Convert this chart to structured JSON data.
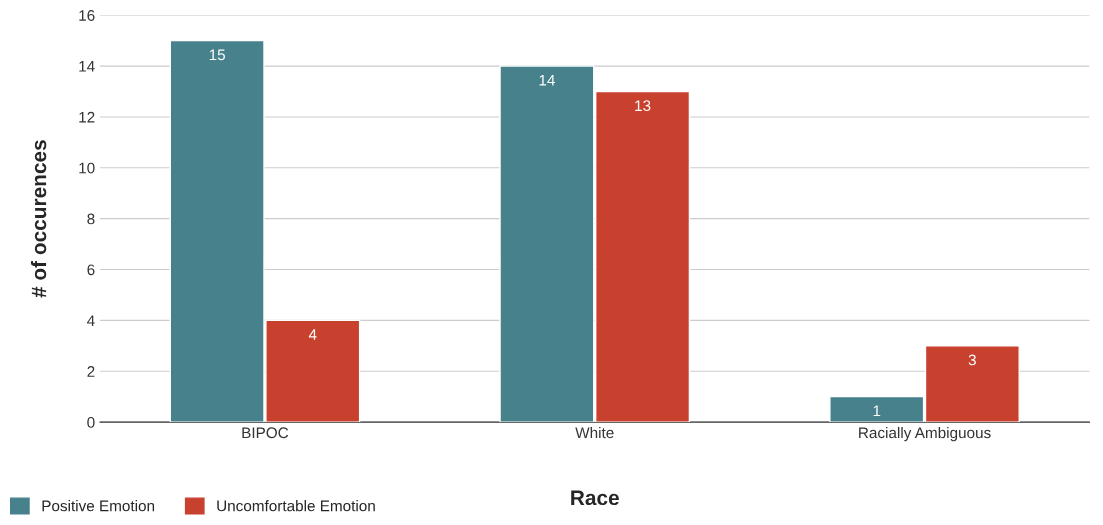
{
  "chart_data": {
    "type": "bar",
    "xlabel": "Race",
    "ylabel": "# of occurences",
    "categories": [
      "BIPOC",
      "White",
      "Racially Ambiguous"
    ],
    "series": [
      {
        "name": "Positive Emotion",
        "color": "#46818c",
        "values": [
          15,
          14,
          1
        ]
      },
      {
        "name": "Uncomfortable Emotion",
        "color": "#c8412f",
        "values": [
          4,
          13,
          3
        ]
      }
    ],
    "ylim": [
      0,
      16
    ],
    "yticks": [
      0,
      2,
      4,
      6,
      8,
      10,
      12,
      14,
      16
    ],
    "grid": "y",
    "legend": "bottom",
    "data_labels": true
  }
}
